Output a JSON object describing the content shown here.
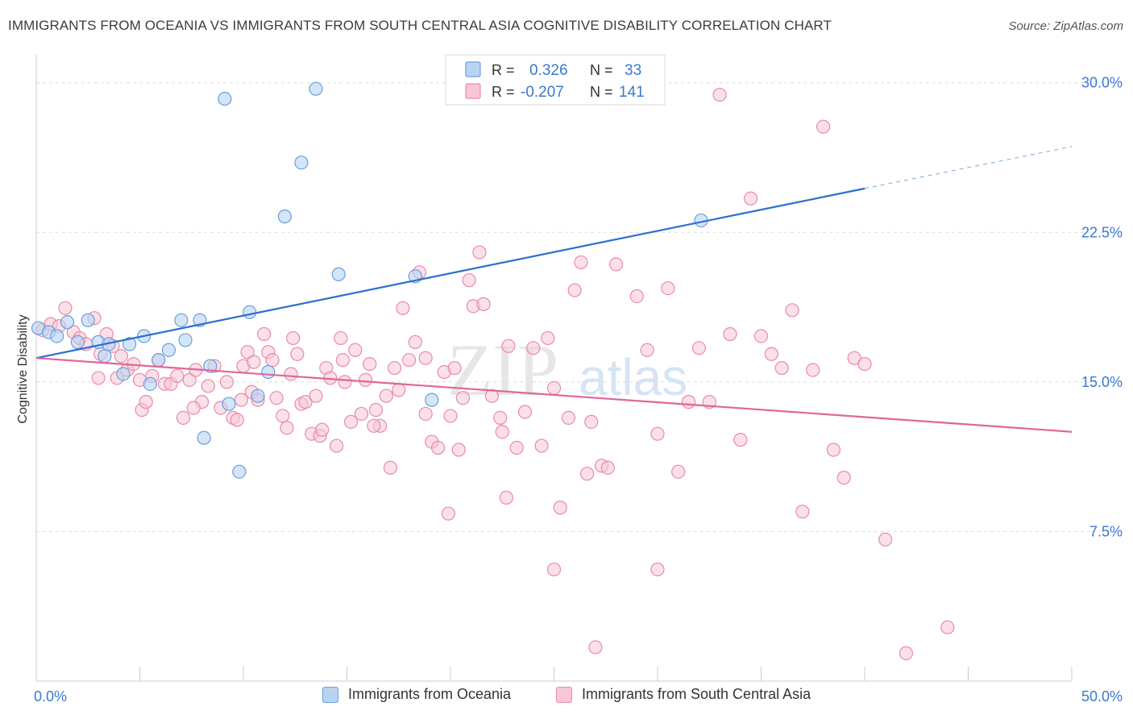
{
  "title": "IMMIGRANTS FROM OCEANIA VS IMMIGRANTS FROM SOUTH CENTRAL ASIA COGNITIVE DISABILITY CORRELATION CHART",
  "source": "Source: ZipAtlas.com",
  "watermark": {
    "zip": "ZIP",
    "atlas": "atlas"
  },
  "colors": {
    "oceania_fill": "#b8d4f3",
    "oceania_stroke": "#6a9fdb",
    "oceania_line": "#2a6fcf",
    "sca_fill": "#f8c6d6",
    "sca_stroke": "#e88aab",
    "sca_line": "#e0669a",
    "axis_label": "#3a78d0",
    "grid": "#dddddd"
  },
  "legend_top": {
    "rows": [
      {
        "r_label": "R =",
        "r_value": "0.326",
        "n_label": "N =",
        "n_value": "33"
      },
      {
        "r_label": "R =",
        "r_value": "-0.207",
        "n_label": "N =",
        "n_value": "141"
      }
    ]
  },
  "legend_bottom": [
    {
      "label": "Immigrants from Oceania"
    },
    {
      "label": "Immigrants from South Central Asia"
    }
  ],
  "chart_data": {
    "type": "scatter",
    "title": "IMMIGRANTS FROM OCEANIA VS IMMIGRANTS FROM SOUTH CENTRAL ASIA COGNITIVE DISABILITY CORRELATION CHART",
    "ylabel": "Cognitive Disability",
    "xlim": [
      0,
      50
    ],
    "ylim": [
      0,
      31
    ],
    "x_tick_labels": [
      {
        "x": 0,
        "label": "0.0%"
      },
      {
        "x": 50,
        "label": "50.0%"
      }
    ],
    "y_tick_labels": [
      {
        "y": 7.5,
        "label": "7.5%"
      },
      {
        "y": 15.0,
        "label": "15.0%"
      },
      {
        "y": 22.5,
        "label": "22.5%"
      },
      {
        "y": 30.0,
        "label": "30.0%"
      }
    ],
    "grid": true,
    "legend_placement": "top-center",
    "series": [
      {
        "name": "Immigrants from Oceania",
        "r": 0.326,
        "n": 33,
        "trend": {
          "x0": 0,
          "y0": 16.2,
          "x1": 40,
          "y1": 24.7,
          "dashed_to_x": 50,
          "dashed_to_y": 26.8
        },
        "points": [
          [
            0.1,
            17.7
          ],
          [
            0.6,
            17.5
          ],
          [
            1.0,
            17.3
          ],
          [
            1.5,
            18.0
          ],
          [
            2.0,
            17.0
          ],
          [
            2.5,
            18.1
          ],
          [
            3.0,
            17.0
          ],
          [
            3.3,
            16.3
          ],
          [
            3.5,
            16.9
          ],
          [
            4.2,
            15.4
          ],
          [
            4.5,
            16.9
          ],
          [
            5.2,
            17.3
          ],
          [
            5.5,
            14.9
          ],
          [
            5.9,
            16.1
          ],
          [
            6.4,
            16.6
          ],
          [
            7.0,
            18.1
          ],
          [
            7.2,
            17.1
          ],
          [
            7.9,
            18.1
          ],
          [
            8.1,
            12.2
          ],
          [
            8.4,
            15.8
          ],
          [
            9.1,
            29.2
          ],
          [
            9.3,
            13.9
          ],
          [
            9.8,
            10.5
          ],
          [
            10.3,
            18.5
          ],
          [
            10.7,
            14.3
          ],
          [
            11.2,
            15.5
          ],
          [
            12.0,
            23.3
          ],
          [
            12.8,
            26.0
          ],
          [
            13.5,
            29.7
          ],
          [
            14.6,
            20.4
          ],
          [
            18.3,
            20.3
          ],
          [
            19.1,
            14.1
          ],
          [
            32.1,
            23.1
          ]
        ]
      },
      {
        "name": "Immigrants from South Central Asia",
        "r": -0.207,
        "n": 141,
        "trend": {
          "x0": 0,
          "y0": 16.2,
          "x1": 50,
          "y1": 12.5
        },
        "points": [
          [
            0.3,
            17.6
          ],
          [
            0.7,
            17.9
          ],
          [
            1.1,
            17.8
          ],
          [
            1.4,
            18.7
          ],
          [
            1.8,
            17.5
          ],
          [
            2.1,
            17.2
          ],
          [
            2.4,
            16.9
          ],
          [
            2.8,
            18.2
          ],
          [
            3.1,
            16.4
          ],
          [
            3.4,
            17.4
          ],
          [
            3.7,
            16.8
          ],
          [
            3.9,
            15.2
          ],
          [
            4.1,
            16.3
          ],
          [
            4.4,
            15.6
          ],
          [
            4.7,
            15.9
          ],
          [
            5.0,
            15.1
          ],
          [
            5.1,
            13.6
          ],
          [
            5.3,
            14.0
          ],
          [
            5.6,
            15.3
          ],
          [
            5.9,
            16.1
          ],
          [
            6.2,
            14.9
          ],
          [
            6.5,
            14.9
          ],
          [
            6.8,
            15.3
          ],
          [
            7.1,
            13.2
          ],
          [
            7.4,
            15.1
          ],
          [
            7.7,
            15.6
          ],
          [
            8.0,
            14.0
          ],
          [
            8.3,
            14.8
          ],
          [
            8.6,
            15.8
          ],
          [
            8.9,
            13.7
          ],
          [
            9.2,
            15.0
          ],
          [
            9.5,
            13.2
          ],
          [
            9.7,
            13.1
          ],
          [
            10.0,
            15.8
          ],
          [
            10.2,
            16.5
          ],
          [
            10.4,
            14.5
          ],
          [
            10.7,
            14.1
          ],
          [
            11.0,
            17.4
          ],
          [
            11.2,
            16.5
          ],
          [
            11.4,
            16.1
          ],
          [
            11.6,
            14.2
          ],
          [
            11.9,
            13.3
          ],
          [
            12.1,
            12.7
          ],
          [
            12.3,
            15.4
          ],
          [
            12.6,
            16.4
          ],
          [
            12.8,
            13.9
          ],
          [
            13.0,
            14.0
          ],
          [
            13.3,
            12.4
          ],
          [
            13.5,
            14.3
          ],
          [
            13.7,
            12.3
          ],
          [
            14.0,
            15.7
          ],
          [
            14.2,
            15.2
          ],
          [
            14.5,
            11.8
          ],
          [
            14.7,
            17.2
          ],
          [
            14.9,
            15.0
          ],
          [
            15.2,
            13.0
          ],
          [
            15.4,
            16.6
          ],
          [
            15.7,
            13.4
          ],
          [
            15.9,
            15.1
          ],
          [
            16.1,
            15.9
          ],
          [
            16.4,
            13.6
          ],
          [
            16.6,
            12.8
          ],
          [
            16.9,
            14.3
          ],
          [
            17.1,
            10.7
          ],
          [
            17.3,
            15.7
          ],
          [
            17.5,
            14.6
          ],
          [
            17.7,
            18.7
          ],
          [
            18.0,
            16.1
          ],
          [
            18.3,
            17.0
          ],
          [
            18.5,
            20.5
          ],
          [
            18.8,
            13.4
          ],
          [
            19.1,
            12.0
          ],
          [
            19.4,
            11.7
          ],
          [
            19.7,
            15.5
          ],
          [
            19.9,
            8.4
          ],
          [
            20.2,
            15.7
          ],
          [
            20.4,
            11.6
          ],
          [
            20.6,
            14.2
          ],
          [
            20.9,
            20.1
          ],
          [
            21.1,
            18.8
          ],
          [
            21.4,
            21.5
          ],
          [
            21.6,
            18.9
          ],
          [
            22.0,
            14.3
          ],
          [
            22.4,
            13.2
          ],
          [
            22.7,
            9.2
          ],
          [
            22.8,
            16.8
          ],
          [
            23.2,
            11.7
          ],
          [
            23.6,
            13.5
          ],
          [
            24.0,
            16.7
          ],
          [
            24.4,
            11.8
          ],
          [
            24.7,
            17.2
          ],
          [
            25.0,
            14.7
          ],
          [
            25.3,
            8.7
          ],
          [
            25.7,
            13.2
          ],
          [
            26.0,
            19.6
          ],
          [
            26.3,
            21.0
          ],
          [
            26.6,
            10.4
          ],
          [
            27.0,
            1.7
          ],
          [
            27.3,
            10.8
          ],
          [
            27.6,
            10.7
          ],
          [
            28.0,
            20.9
          ],
          [
            29.0,
            19.3
          ],
          [
            29.5,
            16.6
          ],
          [
            30.0,
            12.4
          ],
          [
            30.5,
            19.7
          ],
          [
            31.0,
            10.5
          ],
          [
            31.5,
            14.0
          ],
          [
            32.0,
            16.7
          ],
          [
            32.5,
            14.0
          ],
          [
            33.0,
            29.4
          ],
          [
            33.5,
            17.4
          ],
          [
            34.0,
            12.1
          ],
          [
            34.5,
            24.2
          ],
          [
            35.0,
            17.3
          ],
          [
            35.5,
            16.4
          ],
          [
            36.0,
            15.7
          ],
          [
            36.5,
            18.6
          ],
          [
            37.0,
            8.5
          ],
          [
            37.5,
            15.6
          ],
          [
            38.0,
            27.8
          ],
          [
            38.5,
            11.6
          ],
          [
            39.0,
            10.2
          ],
          [
            39.5,
            16.2
          ],
          [
            40.0,
            15.9
          ],
          [
            41.0,
            7.1
          ],
          [
            42.0,
            1.4
          ],
          [
            44.0,
            2.7
          ],
          [
            25.0,
            5.6
          ],
          [
            22.5,
            12.5
          ],
          [
            26.8,
            13.0
          ],
          [
            10.5,
            16.0
          ],
          [
            13.8,
            12.6
          ],
          [
            16.3,
            12.8
          ],
          [
            20.0,
            13.3
          ],
          [
            30.0,
            5.6
          ],
          [
            7.6,
            13.7
          ],
          [
            3.0,
            15.2
          ],
          [
            9.9,
            14.1
          ],
          [
            12.4,
            17.2
          ],
          [
            14.8,
            16.1
          ],
          [
            18.8,
            16.2
          ]
        ]
      }
    ]
  }
}
